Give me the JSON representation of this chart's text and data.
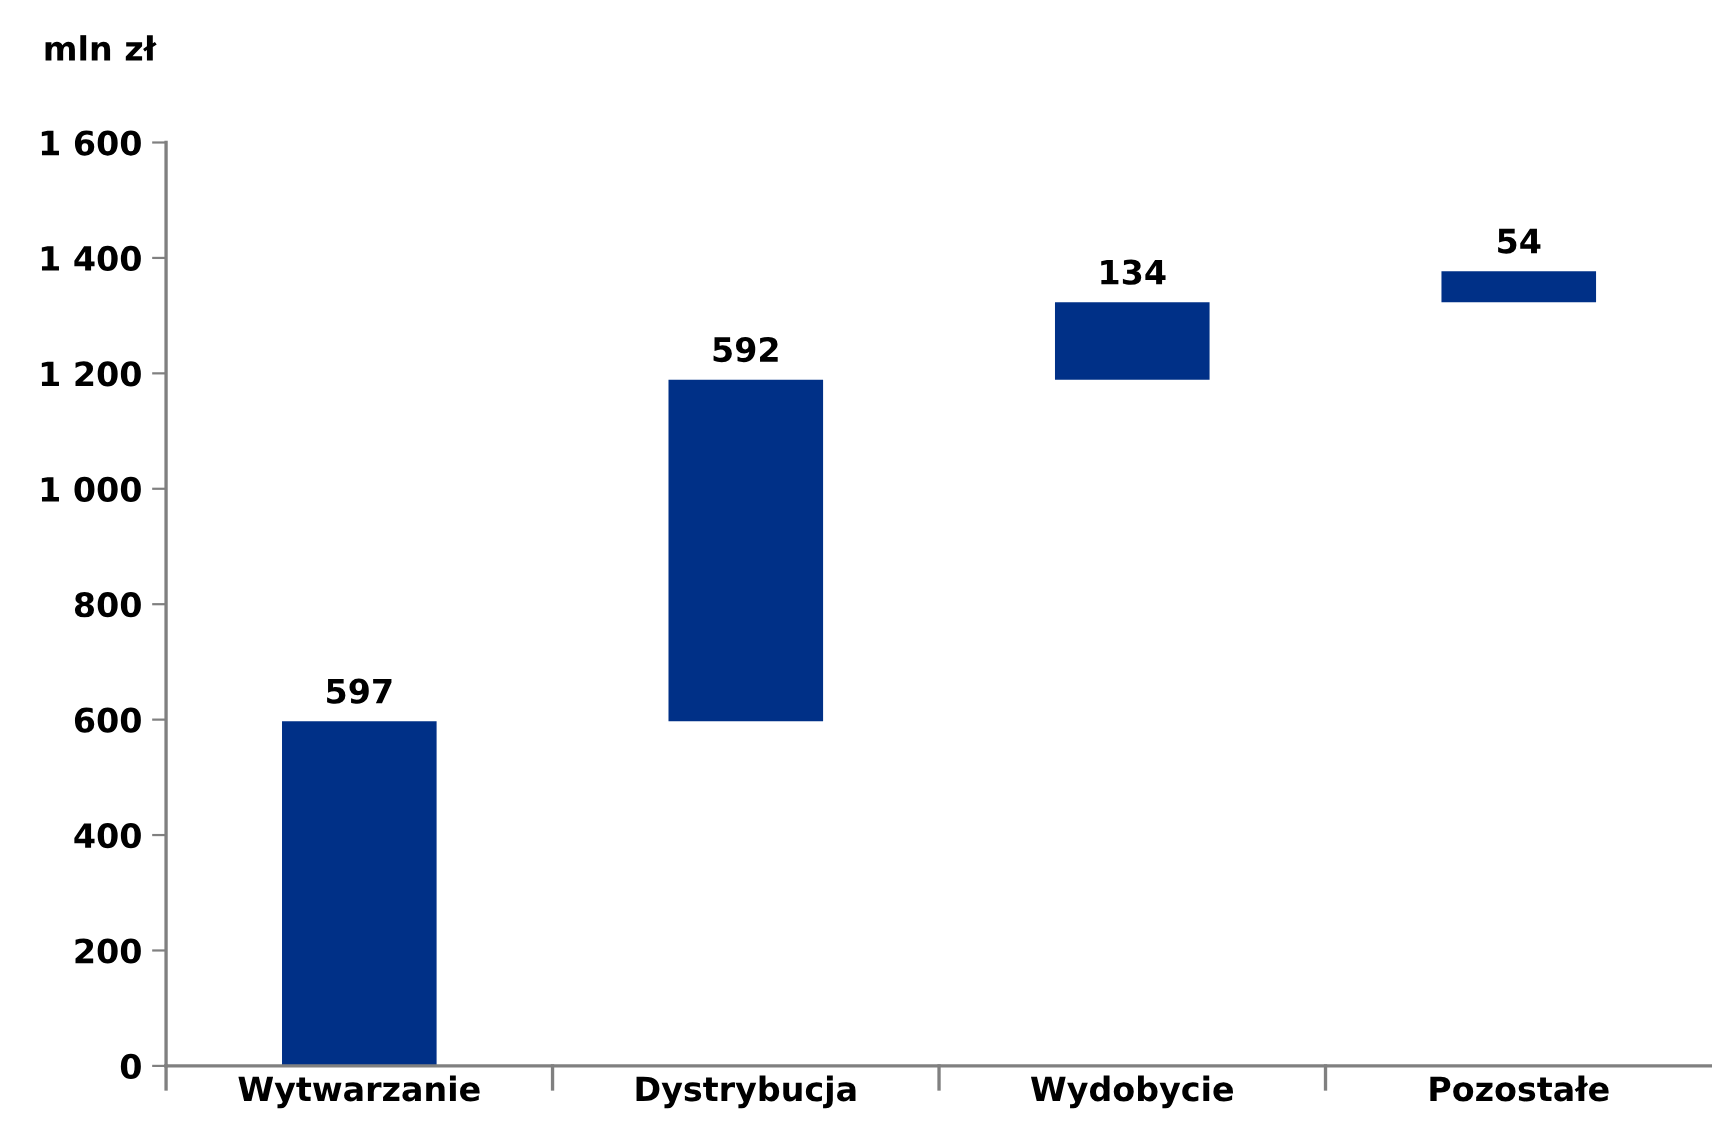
{
  "chart_data": {
    "type": "bar",
    "ylabel": "mln zł",
    "categories": [
      "Wytwarzanie",
      "Dystrybucja",
      "Wydobycie",
      "Pozostałe"
    ],
    "values": [
      597,
      592,
      134,
      54
    ],
    "base": [
      0,
      597,
      1189,
      1323
    ],
    "color": "#003087",
    "ylim": [
      0,
      1600
    ],
    "yticks": [
      0,
      {
        "value": 200,
        "label": "200"
      },
      {
        "value": 400,
        "label": "400"
      },
      {
        "value": 600,
        "label": "600"
      },
      {
        "value": 800,
        "label": "800"
      },
      {
        "value": 1000,
        "label": "1 000"
      },
      {
        "value": 1200,
        "label": "1 200"
      },
      {
        "value": 1400,
        "label": "1 400"
      },
      {
        "value": 1600,
        "label": "1 600"
      }
    ],
    "data_labels": true,
    "grid": false,
    "legend": false
  }
}
